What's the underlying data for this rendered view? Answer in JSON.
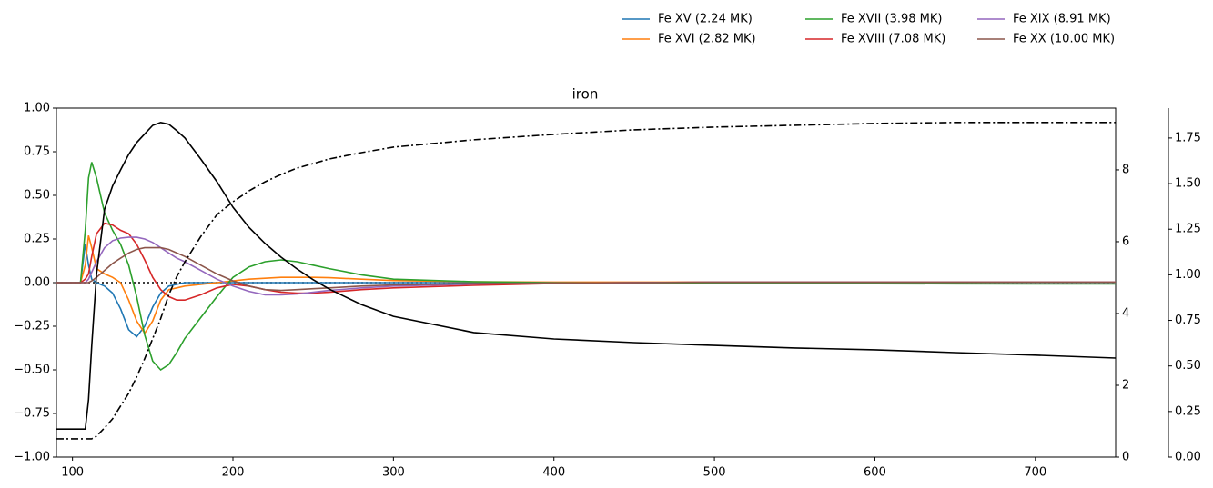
{
  "chart_data": {
    "type": "line",
    "title": "iron",
    "x": [
      90,
      100,
      105,
      108,
      110,
      112,
      115,
      120,
      125,
      130,
      135,
      140,
      145,
      150,
      155,
      160,
      165,
      170,
      180,
      190,
      200,
      210,
      220,
      230,
      240,
      250,
      260,
      280,
      300,
      350,
      400,
      450,
      500,
      550,
      600,
      650,
      700,
      750
    ],
    "series": [
      {
        "name": "Fe XV (2.24 MK)",
        "color": "#1f77b4",
        "linestyle": "solid",
        "axis": "y",
        "values": [
          0,
          0,
          0,
          0.22,
          0.1,
          0.02,
          0,
          -0.02,
          -0.06,
          -0.15,
          -0.27,
          -0.31,
          -0.25,
          -0.14,
          -0.06,
          -0.02,
          -0.01,
          0,
          0,
          0,
          0,
          0,
          0,
          0,
          0,
          0,
          0,
          0,
          0,
          0,
          0,
          0,
          0,
          0,
          0,
          0,
          0,
          0
        ]
      },
      {
        "name": "Fe XVI (2.82 MK)",
        "color": "#ff7f0e",
        "linestyle": "solid",
        "axis": "y",
        "values": [
          0,
          0,
          0,
          0.1,
          0.27,
          0.2,
          0.08,
          0.05,
          0.03,
          0,
          -0.1,
          -0.22,
          -0.29,
          -0.22,
          -0.1,
          -0.04,
          -0.03,
          -0.02,
          -0.01,
          0,
          0.01,
          0.02,
          0.025,
          0.03,
          0.03,
          0.03,
          0.028,
          0.02,
          0.012,
          0.005,
          0.003,
          0.003,
          0.003,
          0.003,
          0.003,
          0.003,
          0.003,
          0.003
        ]
      },
      {
        "name": "Fe XVII (3.98 MK)",
        "color": "#2ca02c",
        "linestyle": "solid",
        "axis": "y",
        "values": [
          0,
          0,
          0,
          0.3,
          0.6,
          0.69,
          0.6,
          0.4,
          0.3,
          0.22,
          0.1,
          -0.08,
          -0.3,
          -0.45,
          -0.5,
          -0.47,
          -0.4,
          -0.32,
          -0.2,
          -0.08,
          0.03,
          0.09,
          0.12,
          0.13,
          0.12,
          0.1,
          0.08,
          0.045,
          0.02,
          0.005,
          0,
          -0.003,
          -0.005,
          -0.005,
          -0.006,
          -0.007,
          -0.008,
          -0.008
        ]
      },
      {
        "name": "Fe XVIII (7.08 MK)",
        "color": "#d62728",
        "linestyle": "solid",
        "axis": "y",
        "values": [
          0,
          0,
          0,
          0.02,
          0.05,
          0.15,
          0.28,
          0.34,
          0.33,
          0.3,
          0.28,
          0.22,
          0.13,
          0.03,
          -0.04,
          -0.08,
          -0.1,
          -0.1,
          -0.07,
          -0.03,
          -0.01,
          -0.02,
          -0.04,
          -0.055,
          -0.06,
          -0.06,
          -0.055,
          -0.04,
          -0.03,
          -0.015,
          -0.005,
          0,
          0.003,
          0.003,
          0.003,
          0.003,
          0.003,
          0.003
        ]
      },
      {
        "name": "Fe XIX (8.91 MK)",
        "color": "#9467bd",
        "linestyle": "solid",
        "axis": "y",
        "values": [
          0,
          0,
          0,
          0,
          0.02,
          0.06,
          0.12,
          0.2,
          0.24,
          0.255,
          0.26,
          0.26,
          0.25,
          0.23,
          0.2,
          0.17,
          0.14,
          0.12,
          0.07,
          0.02,
          -0.02,
          -0.05,
          -0.07,
          -0.07,
          -0.065,
          -0.055,
          -0.045,
          -0.03,
          -0.02,
          -0.008,
          -0.003,
          0,
          0.002,
          0.002,
          0.002,
          0.002,
          0.002,
          0.002
        ]
      },
      {
        "name": "Fe XX (10.00 MK)",
        "color": "#8c564b",
        "linestyle": "solid",
        "axis": "y",
        "values": [
          0,
          0,
          0,
          0,
          0,
          0.01,
          0.03,
          0.07,
          0.11,
          0.14,
          0.17,
          0.19,
          0.2,
          0.2,
          0.2,
          0.19,
          0.17,
          0.15,
          0.1,
          0.05,
          0.01,
          -0.02,
          -0.04,
          -0.045,
          -0.04,
          -0.035,
          -0.03,
          -0.02,
          -0.013,
          -0.005,
          -0.002,
          0,
          0.002,
          0.002,
          0.002,
          0.002,
          0.002,
          0.002
        ]
      },
      {
        "color": "#000000",
        "linestyle": "solid",
        "axis": "y2",
        "values": [
          0.78,
          0.78,
          0.78,
          0.78,
          1.6,
          3.1,
          5.1,
          6.9,
          7.55,
          8.0,
          8.43,
          8.76,
          9.0,
          9.24,
          9.32,
          9.27,
          9.09,
          8.89,
          8.3,
          7.67,
          6.96,
          6.4,
          5.95,
          5.57,
          5.24,
          4.94,
          4.68,
          4.25,
          3.92,
          3.47,
          3.29,
          3.19,
          3.11,
          3.04,
          2.99,
          2.91,
          2.84,
          2.76
        ]
      },
      {
        "color": "#000000",
        "linestyle": "dashdot",
        "axis": "y3",
        "values": [
          0.1,
          0.1,
          0.1,
          0.1,
          0.1,
          0.1,
          0.115,
          0.16,
          0.21,
          0.28,
          0.35,
          0.44,
          0.54,
          0.65,
          0.76,
          0.89,
          0.99,
          1.07,
          1.21,
          1.33,
          1.4,
          1.46,
          1.51,
          1.55,
          1.585,
          1.61,
          1.635,
          1.67,
          1.7,
          1.74,
          1.77,
          1.795,
          1.81,
          1.82,
          1.83,
          1.835,
          1.835,
          1.835
        ]
      }
    ],
    "hlines": [
      {
        "y": 0,
        "color": "#000000",
        "linestyle": "dotted"
      }
    ],
    "xlim": [
      90,
      750
    ],
    "xticks": [
      100,
      200,
      300,
      400,
      500,
      600,
      700
    ],
    "ylim": [
      -1,
      1
    ],
    "yticks": [
      {
        "value": -1,
        "label": "−1.00"
      },
      {
        "value": -0.75,
        "label": "−0.75"
      },
      {
        "value": -0.5,
        "label": "−0.50"
      },
      {
        "value": -0.25,
        "label": "−0.25"
      },
      {
        "value": 0,
        "label": "0.00"
      },
      {
        "value": 0.25,
        "label": "0.25"
      },
      {
        "value": 0.5,
        "label": "0.50"
      },
      {
        "value": 0.75,
        "label": "0.75"
      },
      {
        "value": 1,
        "label": "1.00"
      }
    ],
    "y2lim": [
      0,
      9.72
    ],
    "y2ticks": [
      0,
      2,
      4,
      6,
      8
    ],
    "y3lim": [
      0,
      1.914
    ],
    "y3ticks": [
      {
        "value": 0,
        "label": "0.00"
      },
      {
        "value": 0.25,
        "label": "0.25"
      },
      {
        "value": 0.5,
        "label": "0.50"
      },
      {
        "value": 0.75,
        "label": "0.75"
      },
      {
        "value": 1,
        "label": "1.00"
      },
      {
        "value": 1.25,
        "label": "1.25"
      },
      {
        "value": 1.5,
        "label": "1.50"
      },
      {
        "value": 1.75,
        "label": "1.75"
      }
    ],
    "legend": "top-right-outside",
    "grid": false
  }
}
